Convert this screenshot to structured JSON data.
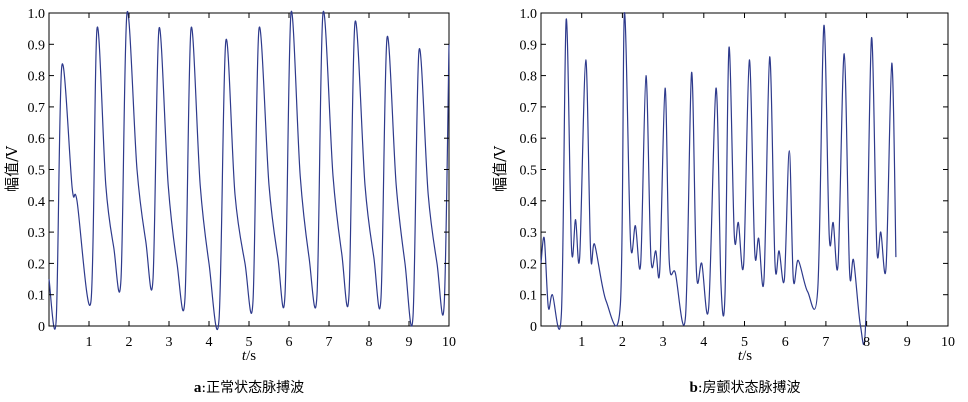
{
  "chart_data": [
    {
      "id": "a",
      "type": "line",
      "caption_letter": "a",
      "caption_text": ":正常状态脉搏波",
      "xlabel": "t/s",
      "ylabel": "幅值/V",
      "xlim": [
        0,
        10
      ],
      "ylim": [
        0,
        1.0
      ],
      "xticks": [
        "1",
        "2",
        "3",
        "4",
        "5",
        "6",
        "7",
        "8",
        "9",
        "10"
      ],
      "yticks": [
        "0",
        "0.1",
        "0.2",
        "0.3",
        "0.4",
        "0.5",
        "0.6",
        "0.7",
        "0.8",
        "0.9",
        "1.0"
      ],
      "grid": false,
      "color": "#2e3a8c",
      "beats": [
        {
          "t": 0.0,
          "a": 0.15
        },
        {
          "t": 0.18,
          "a": 0.02
        },
        {
          "t": 0.32,
          "a": 0.83
        },
        {
          "t": 0.58,
          "a": 0.44
        },
        {
          "t": 0.7,
          "a": 0.4
        },
        {
          "t": 1.05,
          "a": 0.08
        },
        {
          "t": 1.2,
          "a": 0.95
        },
        {
          "t": 1.42,
          "a": 0.45
        },
        {
          "t": 1.62,
          "a": 0.25
        },
        {
          "t": 1.8,
          "a": 0.15
        },
        {
          "t": 1.95,
          "a": 1.0
        },
        {
          "t": 2.2,
          "a": 0.5
        },
        {
          "t": 2.42,
          "a": 0.27
        },
        {
          "t": 2.6,
          "a": 0.15
        },
        {
          "t": 2.75,
          "a": 0.95
        },
        {
          "t": 2.98,
          "a": 0.45
        },
        {
          "t": 3.2,
          "a": 0.2
        },
        {
          "t": 3.4,
          "a": 0.09
        },
        {
          "t": 3.55,
          "a": 0.95
        },
        {
          "t": 3.78,
          "a": 0.45
        },
        {
          "t": 4.0,
          "a": 0.2
        },
        {
          "t": 4.25,
          "a": 0.02
        },
        {
          "t": 4.42,
          "a": 0.91
        },
        {
          "t": 4.65,
          "a": 0.42
        },
        {
          "t": 4.9,
          "a": 0.2
        },
        {
          "t": 5.1,
          "a": 0.08
        },
        {
          "t": 5.25,
          "a": 0.95
        },
        {
          "t": 5.5,
          "a": 0.45
        },
        {
          "t": 5.72,
          "a": 0.22
        },
        {
          "t": 5.9,
          "a": 0.1
        },
        {
          "t": 6.05,
          "a": 1.0
        },
        {
          "t": 6.28,
          "a": 0.48
        },
        {
          "t": 6.5,
          "a": 0.22
        },
        {
          "t": 6.7,
          "a": 0.1
        },
        {
          "t": 6.85,
          "a": 1.0
        },
        {
          "t": 7.1,
          "a": 0.48
        },
        {
          "t": 7.32,
          "a": 0.23
        },
        {
          "t": 7.5,
          "a": 0.1
        },
        {
          "t": 7.65,
          "a": 0.97
        },
        {
          "t": 7.9,
          "a": 0.45
        },
        {
          "t": 8.12,
          "a": 0.22
        },
        {
          "t": 8.3,
          "a": 0.09
        },
        {
          "t": 8.45,
          "a": 0.92
        },
        {
          "t": 8.68,
          "a": 0.45
        },
        {
          "t": 8.9,
          "a": 0.2
        },
        {
          "t": 9.1,
          "a": 0.03
        },
        {
          "t": 9.25,
          "a": 0.88
        },
        {
          "t": 9.48,
          "a": 0.42
        },
        {
          "t": 9.7,
          "a": 0.2
        },
        {
          "t": 9.88,
          "a": 0.07
        },
        {
          "t": 10.0,
          "a": 0.9
        }
      ]
    },
    {
      "id": "b",
      "type": "line",
      "caption_letter": "b",
      "caption_text": ":房颤状态脉搏波",
      "xlabel": "t/s",
      "ylabel": "幅值/V",
      "xlim": [
        0,
        10
      ],
      "ylim": [
        0,
        1.0
      ],
      "xticks": [
        "1",
        "2",
        "3",
        "4",
        "5",
        "6",
        "7",
        "8",
        "9",
        "10"
      ],
      "yticks": [
        "0",
        "0.1",
        "0.2",
        "0.3",
        "0.4",
        "0.5",
        "0.6",
        "0.7",
        "0.8",
        "0.9",
        "1.0"
      ],
      "grid": false,
      "color": "#2e3a8c",
      "beats": [
        {
          "t": 0.0,
          "a": 0.2
        },
        {
          "t": 0.08,
          "a": 0.28
        },
        {
          "t": 0.18,
          "a": 0.06
        },
        {
          "t": 0.28,
          "a": 0.1
        },
        {
          "t": 0.5,
          "a": 0.04
        },
        {
          "t": 0.62,
          "a": 0.98
        },
        {
          "t": 0.75,
          "a": 0.25
        },
        {
          "t": 0.85,
          "a": 0.34
        },
        {
          "t": 0.95,
          "a": 0.22
        },
        {
          "t": 1.1,
          "a": 0.85
        },
        {
          "t": 1.22,
          "a": 0.23
        },
        {
          "t": 1.32,
          "a": 0.26
        },
        {
          "t": 1.6,
          "a": 0.08
        },
        {
          "t": 1.95,
          "a": 0.07
        },
        {
          "t": 2.05,
          "a": 1.0
        },
        {
          "t": 2.2,
          "a": 0.27
        },
        {
          "t": 2.32,
          "a": 0.32
        },
        {
          "t": 2.45,
          "a": 0.2
        },
        {
          "t": 2.58,
          "a": 0.8
        },
        {
          "t": 2.7,
          "a": 0.22
        },
        {
          "t": 2.82,
          "a": 0.24
        },
        {
          "t": 2.92,
          "a": 0.18
        },
        {
          "t": 3.05,
          "a": 0.76
        },
        {
          "t": 3.15,
          "a": 0.21
        },
        {
          "t": 3.3,
          "a": 0.17
        },
        {
          "t": 3.55,
          "a": 0.03
        },
        {
          "t": 3.7,
          "a": 0.81
        },
        {
          "t": 3.82,
          "a": 0.17
        },
        {
          "t": 3.95,
          "a": 0.2
        },
        {
          "t": 4.12,
          "a": 0.06
        },
        {
          "t": 4.3,
          "a": 0.76
        },
        {
          "t": 4.42,
          "a": 0.14
        },
        {
          "t": 4.52,
          "a": 0.1
        },
        {
          "t": 4.62,
          "a": 0.89
        },
        {
          "t": 4.75,
          "a": 0.29
        },
        {
          "t": 4.85,
          "a": 0.33
        },
        {
          "t": 4.98,
          "a": 0.2
        },
        {
          "t": 5.12,
          "a": 0.85
        },
        {
          "t": 5.25,
          "a": 0.24
        },
        {
          "t": 5.35,
          "a": 0.28
        },
        {
          "t": 5.48,
          "a": 0.15
        },
        {
          "t": 5.62,
          "a": 0.86
        },
        {
          "t": 5.75,
          "a": 0.2
        },
        {
          "t": 5.85,
          "a": 0.24
        },
        {
          "t": 5.98,
          "a": 0.15
        },
        {
          "t": 6.1,
          "a": 0.56
        },
        {
          "t": 6.2,
          "a": 0.15
        },
        {
          "t": 6.32,
          "a": 0.21
        },
        {
          "t": 6.55,
          "a": 0.11
        },
        {
          "t": 6.8,
          "a": 0.12
        },
        {
          "t": 6.95,
          "a": 0.96
        },
        {
          "t": 7.08,
          "a": 0.29
        },
        {
          "t": 7.18,
          "a": 0.33
        },
        {
          "t": 7.3,
          "a": 0.2
        },
        {
          "t": 7.45,
          "a": 0.87
        },
        {
          "t": 7.58,
          "a": 0.18
        },
        {
          "t": 7.68,
          "a": 0.21
        },
        {
          "t": 7.85,
          "a": 0.0
        },
        {
          "t": 7.98,
          "a": 0.02
        },
        {
          "t": 8.12,
          "a": 0.92
        },
        {
          "t": 8.25,
          "a": 0.25
        },
        {
          "t": 8.35,
          "a": 0.3
        },
        {
          "t": 8.48,
          "a": 0.19
        },
        {
          "t": 8.62,
          "a": 0.84
        },
        {
          "t": 8.72,
          "a": 0.22
        }
      ]
    }
  ]
}
